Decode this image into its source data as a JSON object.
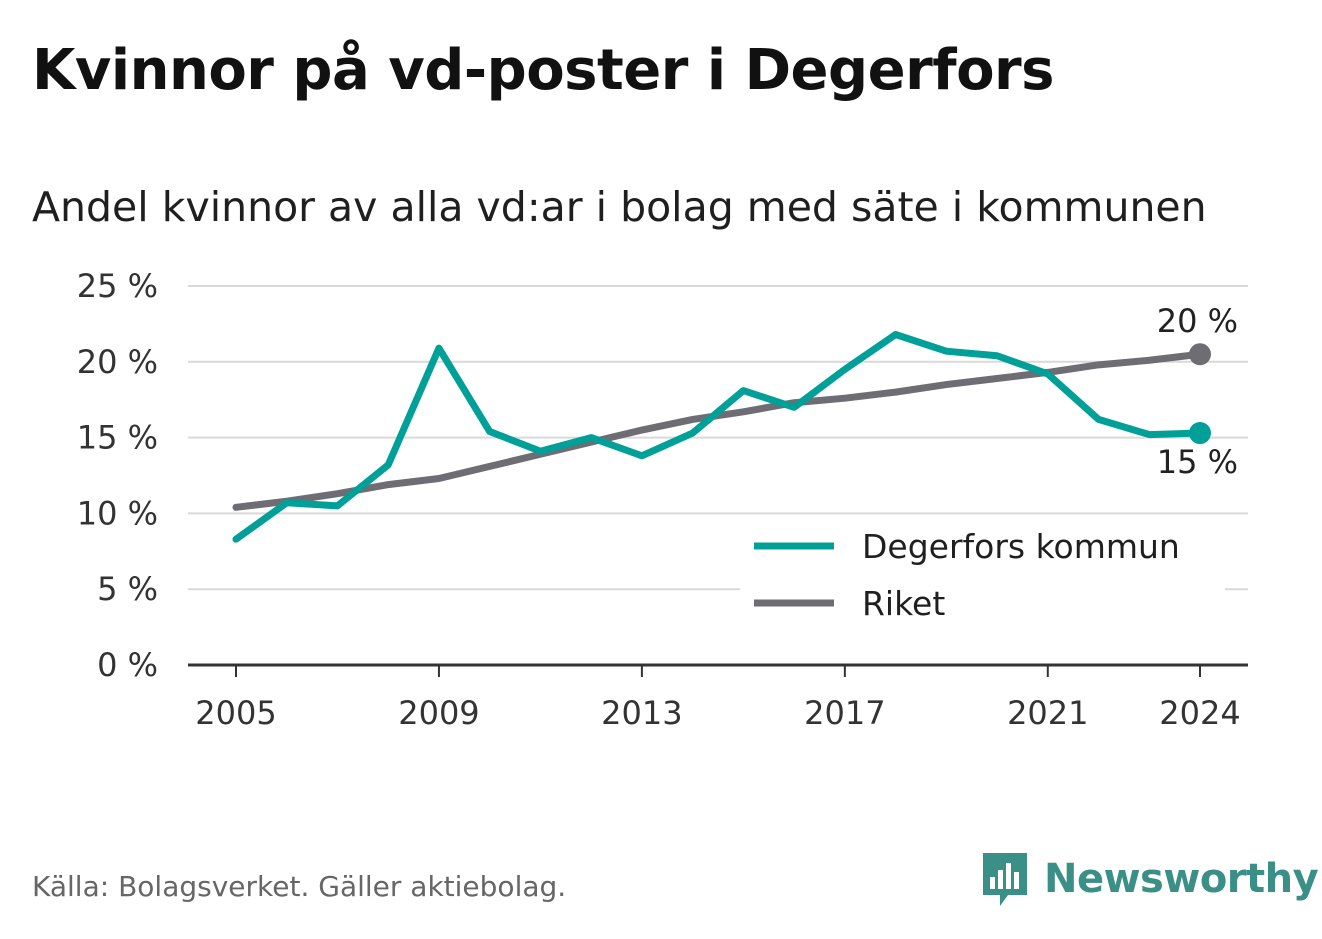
{
  "title": "Kvinnor på vd-poster i Degerfors",
  "subtitle": "Andel kvinnor av alla vd:ar i bolag med säte i kommunen",
  "source": "Källa: Bolagsverket. Gäller aktiebolag.",
  "brand": {
    "name": "Newsworthy",
    "icon": "newsworthy-logo-icon"
  },
  "colors": {
    "degerfors": "#00a099",
    "riket": "#6e6d73",
    "grid": "#d9d9d9",
    "axis": "#333333"
  },
  "chart_data": {
    "type": "line",
    "x": [
      2005,
      2006,
      2007,
      2008,
      2009,
      2010,
      2011,
      2012,
      2013,
      2014,
      2015,
      2016,
      2017,
      2018,
      2019,
      2020,
      2021,
      2022,
      2023,
      2024
    ],
    "series": [
      {
        "name": "Degerfors kommun",
        "color": "#00a099",
        "values": [
          8.3,
          10.7,
          10.5,
          13.2,
          20.9,
          15.4,
          14.1,
          15.0,
          13.8,
          15.3,
          18.1,
          17.0,
          19.5,
          21.8,
          20.7,
          20.4,
          19.2,
          16.2,
          15.2,
          15.3
        ]
      },
      {
        "name": "Riket",
        "color": "#6e6d73",
        "values": [
          10.4,
          10.8,
          11.3,
          11.9,
          12.3,
          13.1,
          13.9,
          14.7,
          15.5,
          16.2,
          16.7,
          17.3,
          17.6,
          18.0,
          18.5,
          18.9,
          19.3,
          19.8,
          20.1,
          20.5
        ]
      }
    ],
    "end_labels": {
      "Riket": "20 %",
      "Degerfors kommun": "15 %"
    },
    "ylim": [
      0,
      25
    ],
    "yticks": [
      0,
      5,
      10,
      15,
      20,
      25
    ],
    "ytick_labels": [
      "0 %",
      "5 %",
      "10 %",
      "15 %",
      "20 %",
      "25 %"
    ],
    "xticks": [
      2005,
      2009,
      2013,
      2017,
      2021,
      2024
    ],
    "xtick_labels": [
      "2005",
      "2009",
      "2013",
      "2017",
      "2021",
      "2024"
    ],
    "grid": true,
    "legend": "bottom-right"
  }
}
